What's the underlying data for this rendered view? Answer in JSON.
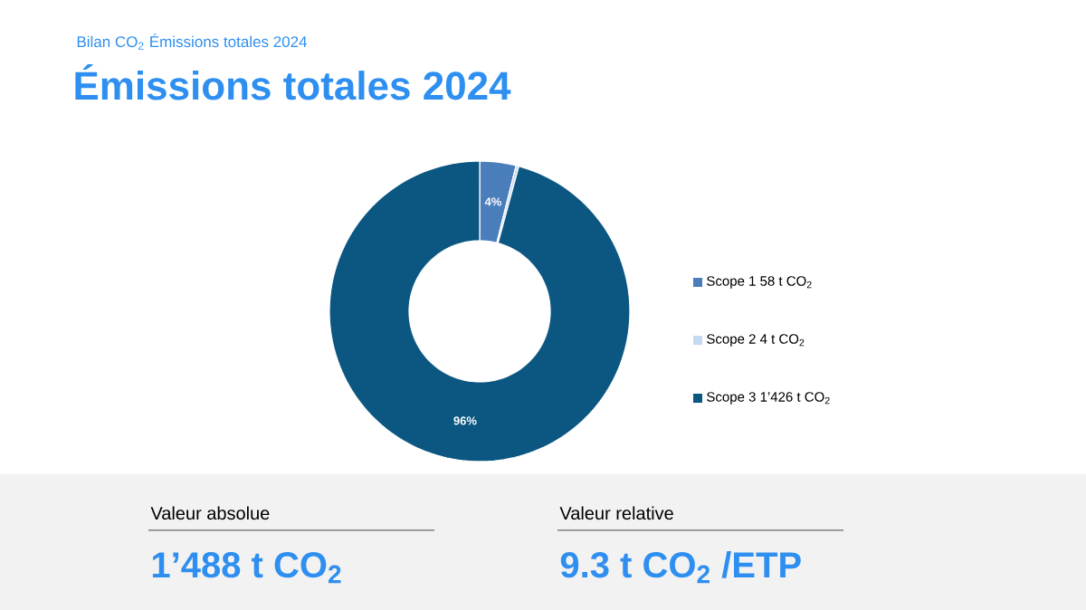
{
  "chart_data": {
    "type": "donut",
    "subtitle": "Bilan CO$_{2}$ Émissions totales 2024",
    "title": "Émissions totales 2024",
    "categories": [
      "Scope 1 58 t CO$_{2}$",
      "Scope 2 4 t CO$_{2}$",
      "Scope 3 1’426 t CO$_{2}$"
    ],
    "values": [
      3.9,
      0.3,
      95.8
    ],
    "value_labels": [
      "4%",
      null,
      "96%"
    ],
    "colors": [
      "#4a7ebb",
      "#c5d9f1",
      "#0b5782"
    ],
    "legend": "right",
    "annotations": [
      "Valeur absolue",
      "1’488 t CO$_{2}$",
      "Valeur relative",
      "9.3 t CO$_{2}$ /ETP"
    ]
  }
}
